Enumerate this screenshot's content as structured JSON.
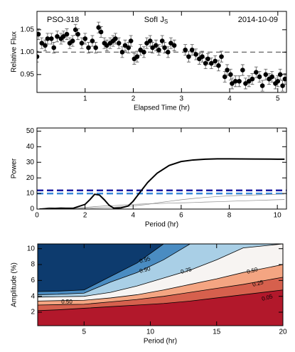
{
  "chart_data": [
    {
      "type": "scatter",
      "annotations": {
        "left": "PSO-318",
        "center": "SofI J",
        "center_sub": "S",
        "right": "2014-10-09"
      },
      "xlabel": "Elapsed Time (hr)",
      "ylabel": "Relative Flux",
      "x": [
        0.0,
        0.03,
        0.1,
        0.17,
        0.22,
        0.3,
        0.35,
        0.42,
        0.5,
        0.55,
        0.62,
        0.68,
        0.74,
        0.8,
        0.85,
        0.93,
        1.0,
        1.07,
        1.15,
        1.22,
        1.28,
        1.33,
        1.4,
        1.45,
        1.52,
        1.58,
        1.63,
        1.7,
        1.77,
        1.83,
        1.9,
        1.95,
        2.02,
        2.08,
        2.15,
        2.22,
        2.28,
        2.35,
        2.4,
        2.47,
        2.53,
        2.6,
        2.65,
        2.72,
        2.78,
        2.85,
        3.08,
        3.15,
        3.22,
        3.3,
        3.37,
        3.43,
        3.5,
        3.55,
        3.62,
        3.7,
        3.77,
        3.83,
        3.9,
        3.95,
        4.02,
        4.05,
        4.12,
        4.2,
        4.27,
        4.33,
        4.4,
        4.47,
        4.55,
        4.62,
        4.68,
        4.75,
        4.82,
        4.88,
        4.95,
        5.0,
        5.05,
        5.1,
        5.15
      ],
      "values": [
        0.99,
        1.04,
        1.02,
        1.015,
        1.03,
        1.03,
        1.01,
        1.035,
        1.03,
        1.035,
        1.04,
        1.02,
        1.025,
        1.05,
        1.04,
        1.02,
        1.03,
        1.01,
        1.025,
        1.01,
        1.055,
        1.045,
        1.02,
        1.015,
        1.02,
        1.025,
        1.03,
        1.02,
        1.0,
        1.015,
        1.01,
        1.025,
        0.985,
        0.99,
        1.005,
        1.0,
        1.02,
        1.025,
        1.01,
        1.015,
        1.005,
        1.025,
        1.01,
        1.0,
        1.02,
        1.015,
        1.005,
        0.99,
        1.005,
        0.995,
        0.985,
        0.99,
        0.975,
        0.985,
        0.975,
        0.98,
        0.97,
        0.99,
        0.945,
        0.96,
        0.95,
        0.93,
        0.935,
        0.935,
        0.96,
        0.93,
        0.935,
        0.94,
        0.955,
        0.945,
        0.925,
        0.95,
        0.94,
        0.945,
        0.93,
        0.935,
        0.95,
        0.925,
        0.94
      ],
      "errors": [
        0.012,
        0.012,
        0.012,
        0.012,
        0.012,
        0.012,
        0.012,
        0.012,
        0.012,
        0.012,
        0.012,
        0.012,
        0.012,
        0.012,
        0.012,
        0.012,
        0.012,
        0.012,
        0.012,
        0.012,
        0.012,
        0.012,
        0.012,
        0.012,
        0.012,
        0.012,
        0.012,
        0.012,
        0.012,
        0.012,
        0.012,
        0.012,
        0.012,
        0.012,
        0.012,
        0.012,
        0.012,
        0.012,
        0.012,
        0.012,
        0.012,
        0.012,
        0.012,
        0.012,
        0.012,
        0.012,
        0.012,
        0.012,
        0.012,
        0.012,
        0.012,
        0.012,
        0.012,
        0.012,
        0.012,
        0.012,
        0.012,
        0.012,
        0.012,
        0.012,
        0.012,
        0.012,
        0.012,
        0.012,
        0.012,
        0.012,
        0.012,
        0.012,
        0.012,
        0.012,
        0.012,
        0.012,
        0.012,
        0.012,
        0.012,
        0.012,
        0.012,
        0.012,
        0.012
      ],
      "color": "#000000",
      "error_color": "#555555",
      "reference_line": {
        "value": 1,
        "color": "#777777"
      },
      "xlim": [
        0,
        5.18
      ],
      "ylim": [
        0.91,
        1.091
      ],
      "xticks": [
        1,
        2,
        3,
        4,
        5
      ],
      "yticks": [
        0.95,
        {
          "value": 1,
          "label": "1.00"
        },
        1.05
      ]
    },
    {
      "type": "line",
      "xlabel": "Period (hr)",
      "ylabel": "Power",
      "x": [
        0.1,
        0.5,
        1,
        1.5,
        2,
        2.2,
        2.4,
        2.6,
        2.8,
        3,
        3.2,
        3.5,
        3.8,
        4,
        4.3,
        4.6,
        5,
        5.5,
        6,
        6.5,
        7,
        7.5,
        8,
        9,
        10,
        10.3
      ],
      "series": [
        {
          "color": "#888888",
          "width": 0.7,
          "values": [
            0,
            1,
            0.5,
            0.6,
            0.5,
            0.6,
            0.8,
            0.9,
            1,
            1,
            1.2,
            1.5,
            1.8,
            2,
            2.5,
            3,
            4,
            5,
            6,
            6.8,
            7.5,
            8,
            8.5,
            9,
            9.5,
            9.6
          ]
        },
        {
          "color": "#888888",
          "width": 0.7,
          "values": [
            0,
            0.5,
            1,
            0.4,
            1,
            1.3,
            1.6,
            1.8,
            2,
            2,
            2.2,
            2.5,
            2.8,
            3,
            3.2,
            3.4,
            3.5,
            3.8,
            4,
            4.2,
            4.5,
            4.7,
            5,
            5.5,
            6,
            6.1
          ]
        },
        {
          "color": "#000000",
          "width": 2,
          "values": [
            0,
            0.3,
            0.5,
            0.5,
            3,
            6,
            9.5,
            9,
            6,
            2.5,
            0.5,
            0.8,
            2,
            5,
            11,
            17,
            23,
            28,
            30.5,
            31.5,
            32,
            32.2,
            32.2,
            32.1,
            32,
            32
          ]
        }
      ],
      "hlines": [
        {
          "value": 12,
          "color": "#1a1aa0"
        },
        {
          "value": 10,
          "color": "#3a8ad8"
        }
      ],
      "xlim": [
        0,
        10.38
      ],
      "ylim": [
        0,
        52
      ],
      "xticks": [
        0,
        2,
        4,
        6,
        8,
        10
      ],
      "yticks": [
        0,
        10,
        20,
        30,
        40,
        50
      ]
    },
    {
      "type": "contour",
      "xlabel": "Period (hr)",
      "ylabel": "Amplitude (%)",
      "base_color": "#b2182b",
      "x": [
        1.5,
        3,
        5,
        7,
        9,
        11,
        13,
        15,
        17,
        20
      ],
      "contours": [
        {
          "label": "0.05",
          "fill": "#d6604d",
          "values": [
            2.2,
            2.3,
            2.5,
            2.7,
            2.9,
            3.1,
            3.4,
            3.8,
            4.2,
            4.8
          ]
        },
        {
          "label": "0.25",
          "fill": "#f4a582",
          "values": [
            2.9,
            2.95,
            3.0,
            3.3,
            3.6,
            4.0,
            4.5,
            5.0,
            5.5,
            6.4
          ]
        },
        {
          "label": "0.50",
          "fill": "#f7f4f2",
          "values": [
            3.4,
            3.45,
            3.5,
            3.8,
            4.2,
            4.8,
            5.5,
            6.2,
            7.0,
            8.0
          ]
        },
        {
          "label": "0.75",
          "fill": "#a9cfe6",
          "values": [
            3.9,
            3.95,
            4.0,
            4.5,
            5.3,
            6.3,
            7.3,
            8.6,
            10.1,
            10.6
          ]
        },
        {
          "label": "0.90",
          "fill": "#4a8cc2",
          "values": [
            4.2,
            4.25,
            4.4,
            5.8,
            7.0,
            8.6,
            10.6,
            10.6,
            10.6,
            10.6
          ]
        },
        {
          "label": "0.95",
          "fill": "#0d3b6e",
          "values": [
            4.6,
            4.65,
            4.8,
            6.5,
            8.2,
            10.6,
            10.6,
            10.6,
            10.6,
            10.6
          ]
        }
      ],
      "xlim": [
        1.5,
        20
      ],
      "ylim": [
        0.3,
        10.6
      ],
      "xticks": [
        5,
        10,
        15,
        20
      ],
      "yticks": [
        2,
        4,
        6,
        8,
        10
      ]
    }
  ]
}
